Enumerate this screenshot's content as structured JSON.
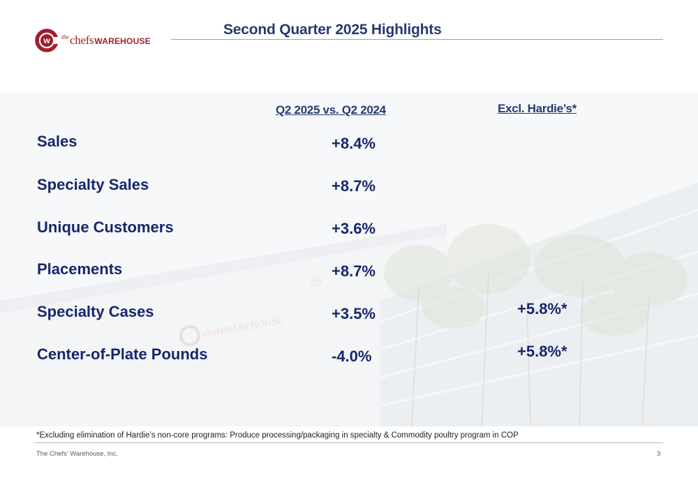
{
  "header": {
    "logo": {
      "the": "the",
      "chefs": "chefs",
      "warehouse": "WAREHOUSE",
      "mark_letter": "w"
    },
    "title": "Second Quarter 2025 Highlights"
  },
  "table": {
    "col1_heading": "Q2 2025 vs. Q2 2024",
    "col2_heading": "Excl. Hardie’s*",
    "rows": [
      {
        "label": "Sales",
        "value": "+8.4%",
        "excl": ""
      },
      {
        "label": "Specialty Sales",
        "value": "+8.7%",
        "excl": ""
      },
      {
        "label": "Unique Customers",
        "value": "+3.6%",
        "excl": ""
      },
      {
        "label": "Placements",
        "value": "+8.7%",
        "excl": ""
      },
      {
        "label": "Specialty Cases",
        "value": "+3.5%",
        "excl": "+5.8%*"
      },
      {
        "label": "Center-of-Plate Pounds",
        "value": "-4.0%",
        "excl": "+5.8%*"
      }
    ]
  },
  "footnote": "*Excluding  elimination of Hardie’s non-core programs: Produce processing/packaging in specialty & Commodity poultry program in COP",
  "footer": {
    "company": "The Chefs’ Warehouse, Inc.",
    "page": "3"
  },
  "colors": {
    "brand_red": "#a01e2c",
    "navy": "#17276b",
    "title_blue": "#283a6e"
  }
}
